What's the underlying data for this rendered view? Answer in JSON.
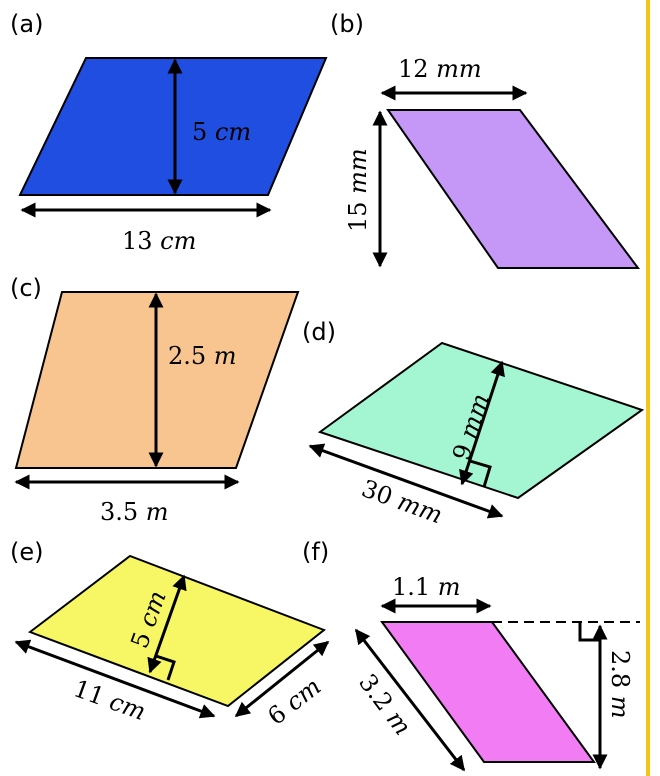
{
  "colors": {
    "a": "#1f4ee0",
    "b": "#c597f7",
    "c": "#f8c591",
    "d": "#a3f6d1",
    "e": "#f7f766",
    "f": "#f17cf3",
    "side_bar": "#f5c518"
  },
  "problems": {
    "a": {
      "tag": "(a)",
      "height": {
        "num": "5 ",
        "unit": "cm"
      },
      "base": {
        "num": "13 ",
        "unit": "cm"
      }
    },
    "b": {
      "tag": "(b)",
      "top": {
        "num": "12 ",
        "unit": "mm"
      },
      "height": {
        "num": "15 ",
        "unit": "mm"
      }
    },
    "c": {
      "tag": "(c)",
      "height": {
        "num": "2.5 ",
        "unit": "m"
      },
      "base": {
        "num": "3.5 ",
        "unit": "m"
      }
    },
    "d": {
      "tag": "(d)",
      "height": {
        "num": "9 ",
        "unit": "mm"
      },
      "base": {
        "num": "30 ",
        "unit": "mm"
      }
    },
    "e": {
      "tag": "(e)",
      "height": {
        "num": "5 ",
        "unit": "cm"
      },
      "base": {
        "num": "11 ",
        "unit": "cm"
      },
      "side": {
        "num": "6 ",
        "unit": "cm"
      }
    },
    "f": {
      "tag": "(f)",
      "top": {
        "num": "1.1 ",
        "unit": "m"
      },
      "height": {
        "num": "2.8 ",
        "unit": "m"
      },
      "slant": {
        "num": "3.2 ",
        "unit": "m"
      }
    }
  }
}
